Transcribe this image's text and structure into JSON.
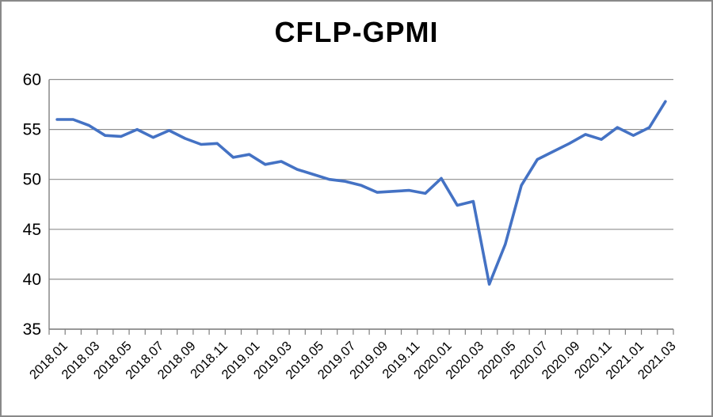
{
  "chart_data": {
    "type": "line",
    "title": "CFLP-GPMI",
    "x": [
      "2018.01",
      "2018.02",
      "2018.03",
      "2018.04",
      "2018.05",
      "2018.06",
      "2018.07",
      "2018.08",
      "2018.09",
      "2018.10",
      "2018.11",
      "2018.12",
      "2019.01",
      "2019.02",
      "2019.03",
      "2019.04",
      "2019.05",
      "2019.06",
      "2019.07",
      "2019.08",
      "2019.09",
      "2019.10",
      "2019.11",
      "2019.12",
      "2020.01",
      "2020.02",
      "2020.03",
      "2020.04",
      "2020.05",
      "2020.06",
      "2020.07",
      "2020.08",
      "2020.09",
      "2020.10",
      "2020.11",
      "2020.12",
      "2021.01",
      "2021.02",
      "2021.03"
    ],
    "series": [
      {
        "name": "CFLP-GPMI",
        "values": [
          56.0,
          56.0,
          55.4,
          54.4,
          54.3,
          55.0,
          54.2,
          54.9,
          54.1,
          53.5,
          53.6,
          52.2,
          52.5,
          51.5,
          51.8,
          51.0,
          50.5,
          50.0,
          49.8,
          49.4,
          48.7,
          48.8,
          48.9,
          48.6,
          50.1,
          47.4,
          47.8,
          39.5,
          43.5,
          49.4,
          52.0,
          52.8,
          53.6,
          54.5,
          54.0,
          55.2,
          54.4,
          55.2,
          57.8
        ]
      }
    ],
    "ylim": [
      35,
      60
    ],
    "yticks": [
      35,
      40,
      45,
      50,
      55,
      60
    ],
    "xtick_label_every": 2,
    "grid": true,
    "legend_position": "none",
    "line_color": "#4472C4",
    "grid_color": "#8f8f8f",
    "axis_color": "#7f7f7f",
    "text_color": "#000000",
    "background": "#ffffff"
  }
}
